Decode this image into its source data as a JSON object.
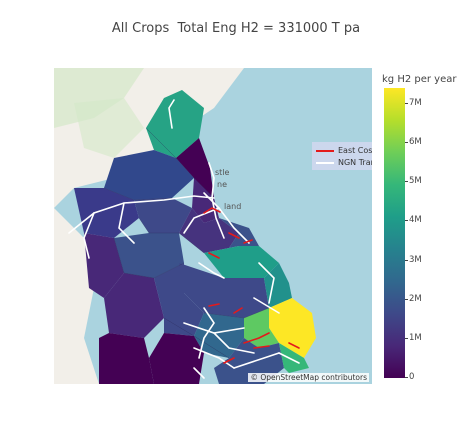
{
  "title": "All Crops  Total Eng H2 = 331000 T pa",
  "legend": {
    "items": [
      {
        "label": "East Cost Hydrogen",
        "color": "#e41a1c"
      },
      {
        "label": "NGN Transmission",
        "color": "#ffffff"
      }
    ]
  },
  "colorbar": {
    "title": "kg H2 per year",
    "ticks": [
      "7M",
      "6M",
      "5M",
      "4M",
      "3M",
      "2M",
      "1M",
      "0"
    ],
    "min": 0,
    "max": 7400000,
    "colorscale": "viridis"
  },
  "map_labels": {
    "place_1": "stle",
    "place_2": "ne",
    "place_3": "land"
  },
  "attribution": "© OpenStreetMap contributors",
  "colors": {
    "sea": "#aad3df",
    "land": "#f2efe9",
    "park": "#d4e8c8"
  }
}
